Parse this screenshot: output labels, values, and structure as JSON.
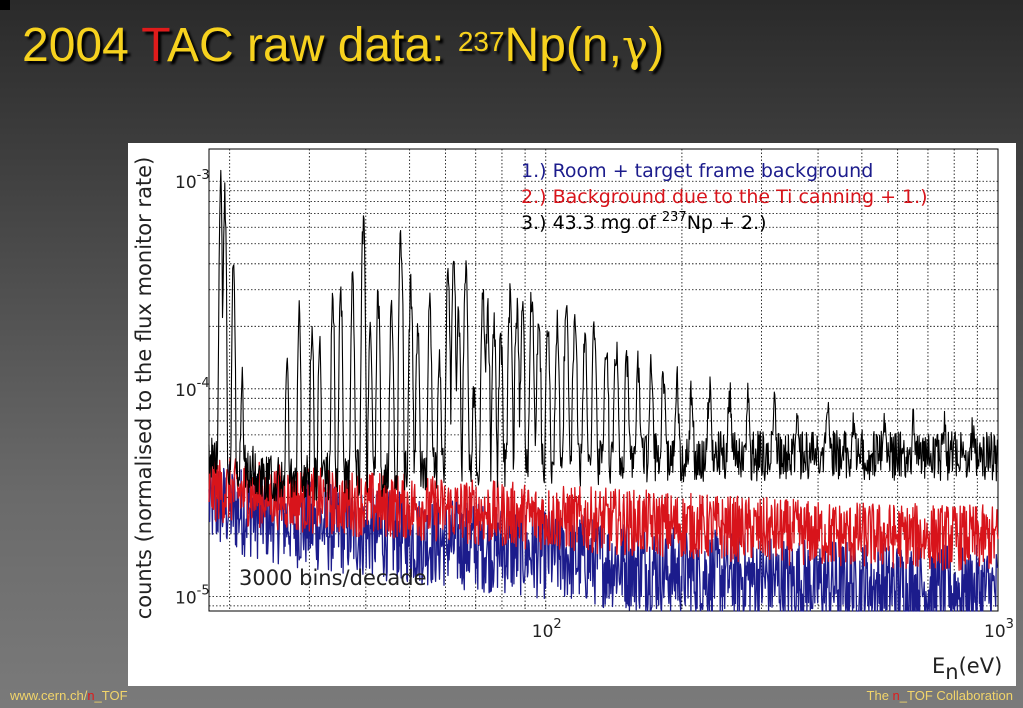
{
  "slide": {
    "title_prefix": "2004 ",
    "title_t": "T",
    "title_mid": "AC raw data: ",
    "title_sup": "237",
    "title_np": "Np(n,",
    "title_gamma": "γ",
    "title_close": ")",
    "footer_left_prefix": "www.cern.ch/",
    "footer_left_n": "n",
    "footer_left_suffix": "_TOF",
    "footer_right_prefix": "The ",
    "footer_right_n": "n",
    "footer_right_suffix": "_TOF Collaboration"
  },
  "colors": {
    "title": "#f7d21e",
    "accent_red": "#e01b1b",
    "series_black": "#000000",
    "series_red": "#d8141b",
    "series_blue": "#1c1c8c"
  },
  "chart_data": {
    "type": "line",
    "xscale": "log",
    "yscale": "log",
    "xlim": [
      18,
      1000
    ],
    "ylim": [
      8.5e-06,
      0.00143
    ],
    "grid": true,
    "xlabel_main": "E",
    "xlabel_sub": "n",
    "xlabel_unit": "(eV)",
    "ylabel": "counts (normalised to the flux monitor rate)",
    "x_ticks": [
      {
        "base": "10",
        "exp": "2",
        "value": 100
      },
      {
        "base": "10",
        "exp": "3",
        "value": 1000
      }
    ],
    "y_ticks": [
      {
        "base": "10",
        "exp": "-3",
        "value": 0.001
      },
      {
        "base": "10",
        "exp": "-4",
        "value": 0.0001
      },
      {
        "base": "10",
        "exp": "-5",
        "value": 1e-05
      }
    ],
    "annotation": "3000 bins/decade",
    "legend_position": "top-right",
    "legend": [
      {
        "text": "1.) Room + target frame background",
        "color": "#1c1c8c"
      },
      {
        "text": "2.) Background due to the Ti canning + 1.)",
        "color": "#d8141b"
      },
      {
        "prefix": "3.) 43.3 mg of ",
        "sup": "237",
        "suffix": "Np + 2.)",
        "color": "#000000"
      }
    ],
    "series": [
      {
        "color": "#1c1c8c",
        "baseline": [
          [
            18,
            2.8e-05
          ],
          [
            30,
            2.2e-05
          ],
          [
            50,
            1.9e-05
          ],
          [
            100,
            1.6e-05
          ],
          [
            200,
            1.3e-05
          ],
          [
            400,
            1.15e-05
          ],
          [
            1000,
            1.05e-05
          ]
        ],
        "noise": 0.22
      },
      {
        "color": "#d8141b",
        "baseline": [
          [
            18,
            3.3e-05
          ],
          [
            30,
            2.9e-05
          ],
          [
            50,
            2.7e-05
          ],
          [
            100,
            2.4e-05
          ],
          [
            200,
            2.2e-05
          ],
          [
            400,
            2e-05
          ],
          [
            1000,
            1.9e-05
          ]
        ],
        "noise": 0.16
      },
      {
        "color": "#000000",
        "baseline": [
          [
            18,
            5e-05
          ],
          [
            21,
            4.3e-05
          ],
          [
            25,
            3.7e-05
          ],
          [
            40,
            3.9e-05
          ],
          [
            60,
            4.1e-05
          ],
          [
            100,
            4.4e-05
          ],
          [
            200,
            4.7e-05
          ],
          [
            500,
            4.8e-05
          ],
          [
            1000,
            4.7e-05
          ]
        ],
        "noise": 0.12,
        "peaks": [
          [
            19.1,
            0.00099
          ],
          [
            19.5,
            0.0009
          ],
          [
            20.4,
            0.00045
          ],
          [
            21.3,
            0.00011
          ],
          [
            26.8,
            0.00016
          ],
          [
            28.5,
            0.00023
          ],
          [
            30.4,
            0.00021
          ],
          [
            31.6,
            0.00016
          ],
          [
            33.8,
            0.00028
          ],
          [
            35.2,
            0.00031
          ],
          [
            37.4,
            0.00032
          ],
          [
            39.5,
            0.00065
          ],
          [
            40.9,
            0.00021
          ],
          [
            42.6,
            0.00028
          ],
          [
            45.6,
            0.00027
          ],
          [
            47.8,
            0.00054
          ],
          [
            50.3,
            0.00032
          ],
          [
            52.1,
            0.0002
          ],
          [
            55.4,
            0.00026
          ],
          [
            58.2,
            0.00015
          ],
          [
            60.8,
            0.00034
          ],
          [
            62.6,
            0.00038
          ],
          [
            64.1,
            0.00022
          ],
          [
            66.5,
            0.00037
          ],
          [
            69.4,
            0.0001
          ],
          [
            72.6,
            0.0003
          ],
          [
            74.4,
            0.00023
          ],
          [
            76.8,
            0.00021
          ],
          [
            79.5,
            0.00018
          ],
          [
            83.4,
            0.00027
          ],
          [
            86.3,
            0.00024
          ],
          [
            88.8,
            0.00023
          ],
          [
            93.1,
            0.00028
          ],
          [
            96.5,
            0.00022
          ],
          [
            101,
            0.0002
          ],
          [
            106,
            0.0002
          ],
          [
            111,
            0.00025
          ],
          [
            116,
            0.00022
          ],
          [
            122,
            0.00018
          ],
          [
            128,
            0.00019
          ],
          [
            136,
            0.00017
          ],
          [
            143,
            0.00016
          ],
          [
            151,
            0.00014
          ],
          [
            160,
            0.00013
          ],
          [
            171,
            0.00013
          ],
          [
            182,
            0.00012
          ],
          [
            195,
            0.00011
          ],
          [
            210,
            0.0001
          ],
          [
            230,
            0.0001
          ],
          [
            255,
            9.5e-05
          ],
          [
            280,
            9e-05
          ],
          [
            320,
            8.5e-05
          ],
          [
            360,
            8e-05
          ],
          [
            420,
            7.8e-05
          ],
          [
            480,
            7.5e-05
          ],
          [
            560,
            7e-05
          ],
          [
            650,
            6.8e-05
          ],
          [
            760,
            6.6e-05
          ],
          [
            880,
            6.4e-05
          ]
        ]
      }
    ]
  }
}
